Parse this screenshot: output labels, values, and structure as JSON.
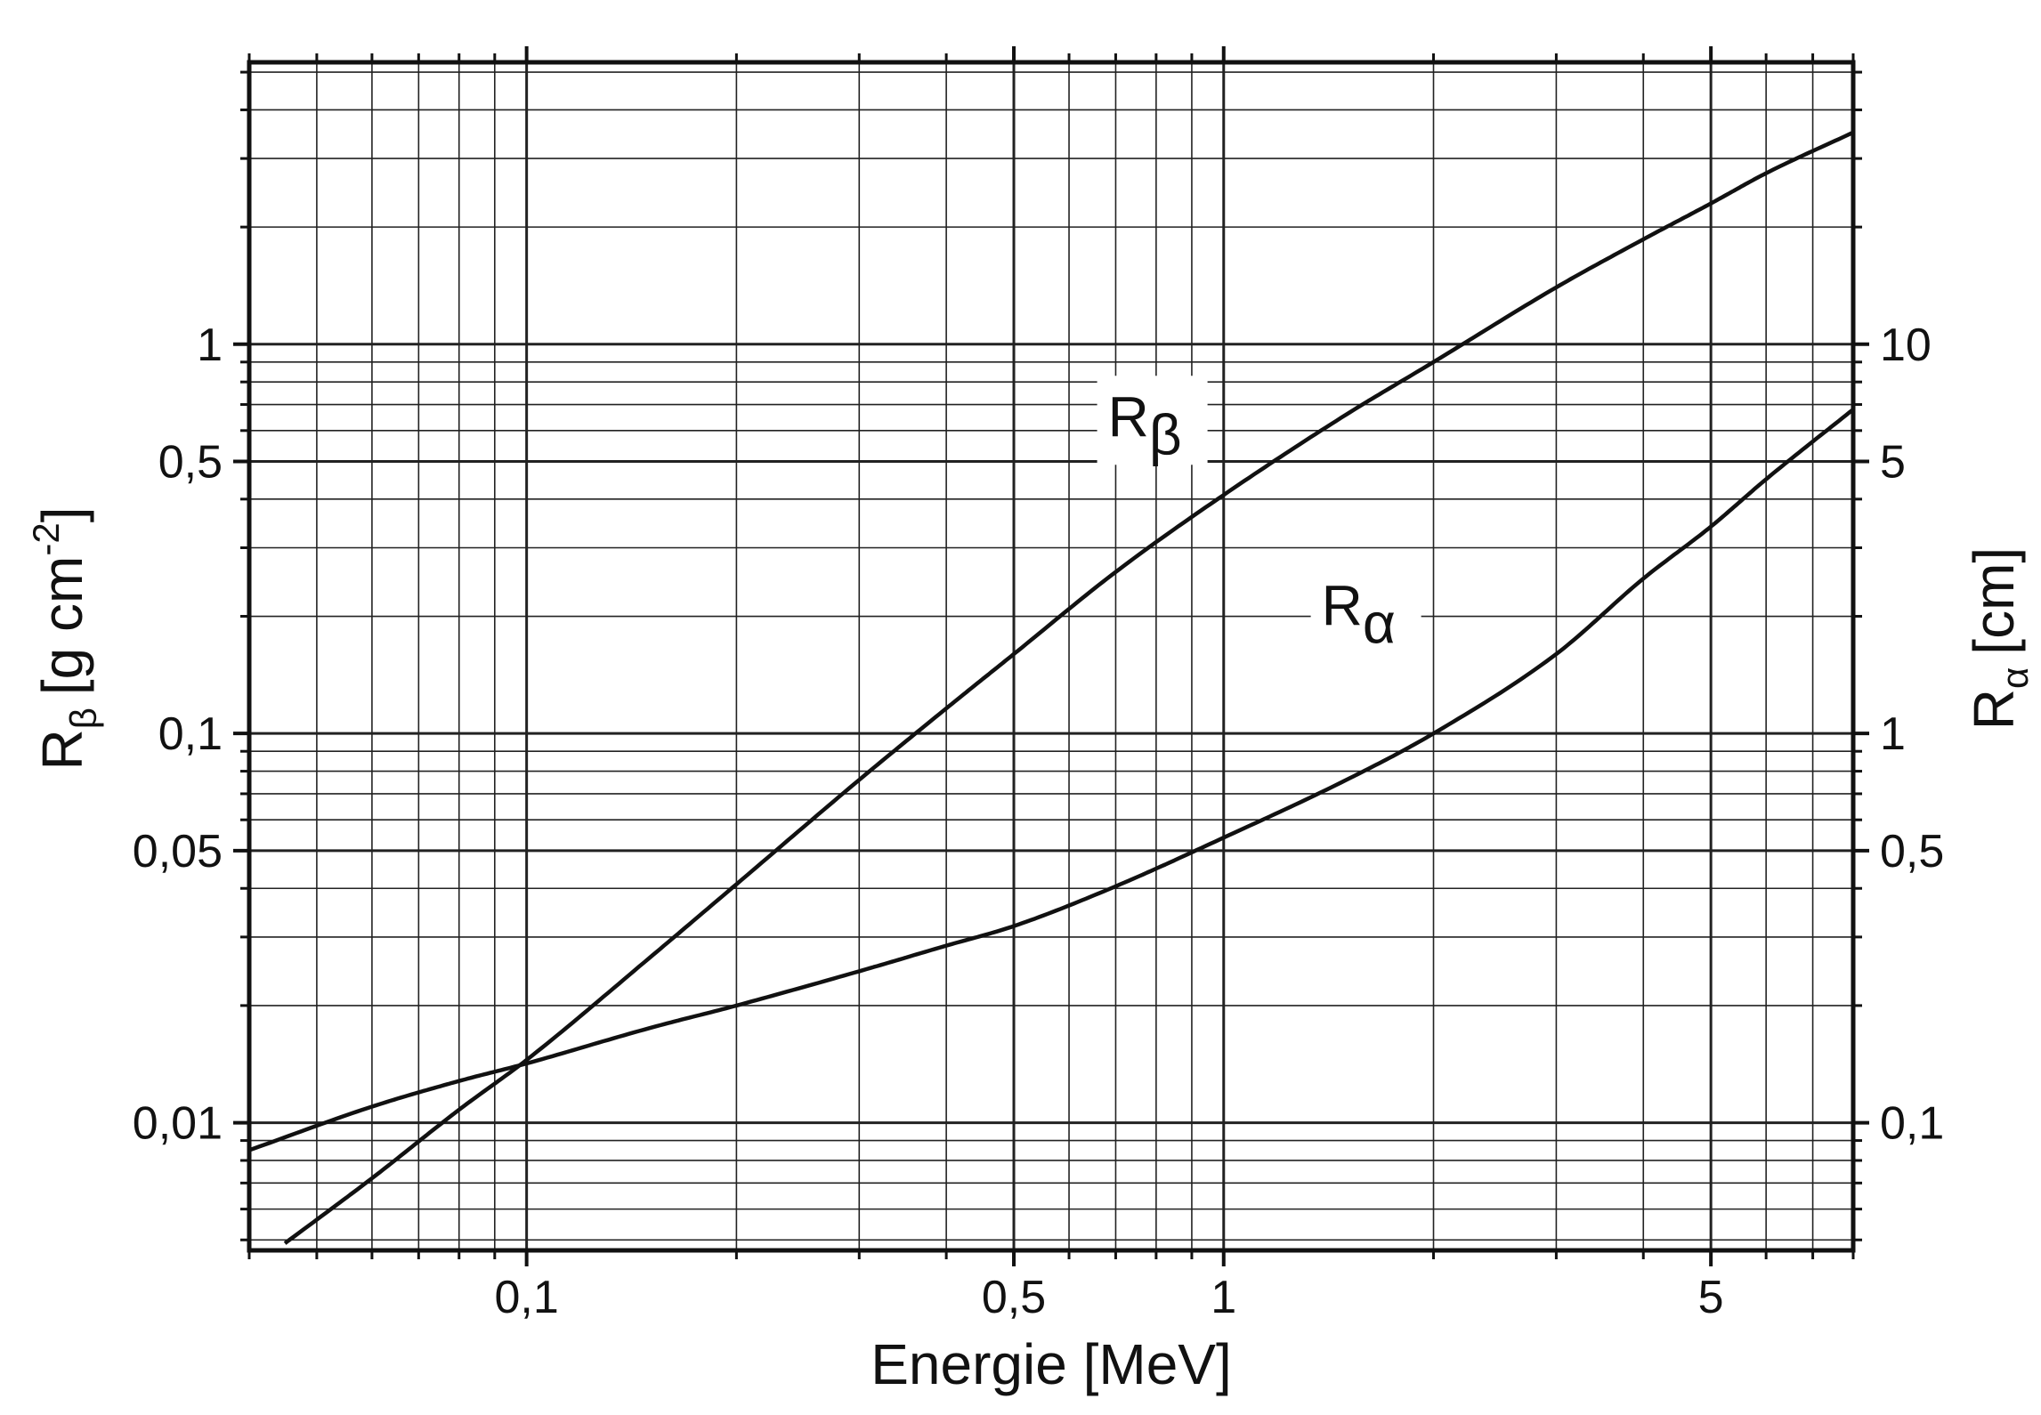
{
  "chart_data": {
    "type": "line",
    "title": "",
    "xlabel": "Energie [MeV]",
    "ylabel_left": {
      "base": "R",
      "subscript": "β",
      "unit": "[g cm",
      "exponent": "-2",
      "close": "]"
    },
    "ylabel_right": {
      "base": "R",
      "subscript": "α",
      "unit": "[cm]"
    },
    "x_scale": "log",
    "y_scale": "log",
    "xlim": [
      0.04,
      8
    ],
    "ylim_left": [
      0.0047,
      5.3
    ],
    "ylim_right": [
      0.047,
      53
    ],
    "grid": true,
    "x_ticks": [
      {
        "value": 0.1,
        "label": "0,1"
      },
      {
        "value": 0.5,
        "label": "0,5"
      },
      {
        "value": 1,
        "label": "1"
      },
      {
        "value": 5,
        "label": "5"
      }
    ],
    "y_ticks_left": [
      {
        "value": 0.01,
        "label": "0,01"
      },
      {
        "value": 0.05,
        "label": "0,05"
      },
      {
        "value": 0.1,
        "label": "0,1"
      },
      {
        "value": 0.5,
        "label": "0,5"
      },
      {
        "value": 1,
        "label": "1"
      }
    ],
    "y_ticks_right": [
      {
        "value": 0.1,
        "label": "0,1"
      },
      {
        "value": 0.5,
        "label": "0,5"
      },
      {
        "value": 1,
        "label": "1"
      },
      {
        "value": 5,
        "label": "5"
      },
      {
        "value": 10,
        "label": "10"
      }
    ],
    "series": [
      {
        "name": "Rβ",
        "label_base": "R",
        "label_sub": "β",
        "axis": "left",
        "label_at": {
          "x": 0.79,
          "y": 0.58
        },
        "x": [
          0.045,
          0.06,
          0.08,
          0.1,
          0.15,
          0.2,
          0.3,
          0.4,
          0.5,
          0.7,
          1.0,
          1.5,
          2.0,
          3.0,
          4.0,
          5.0,
          6.0,
          8.0
        ],
        "y": [
          0.0049,
          0.0072,
          0.0108,
          0.0145,
          0.0265,
          0.041,
          0.076,
          0.116,
          0.16,
          0.26,
          0.41,
          0.66,
          0.9,
          1.4,
          1.86,
          2.3,
          2.75,
          3.5
        ]
      },
      {
        "name": "Rα",
        "label_base": "R",
        "label_sub": "α",
        "axis": "right",
        "label_at": {
          "x": 1.6,
          "y": 1.9
        },
        "x": [
          0.04,
          0.06,
          0.08,
          0.1,
          0.15,
          0.2,
          0.3,
          0.4,
          0.5,
          0.7,
          1.0,
          1.5,
          2.0,
          3.0,
          4.0,
          5.0,
          6.0,
          8.0
        ],
        "y": [
          0.085,
          0.11,
          0.128,
          0.142,
          0.175,
          0.2,
          0.245,
          0.285,
          0.32,
          0.405,
          0.54,
          0.76,
          1.0,
          1.6,
          2.5,
          3.4,
          4.5,
          6.8
        ]
      }
    ]
  }
}
